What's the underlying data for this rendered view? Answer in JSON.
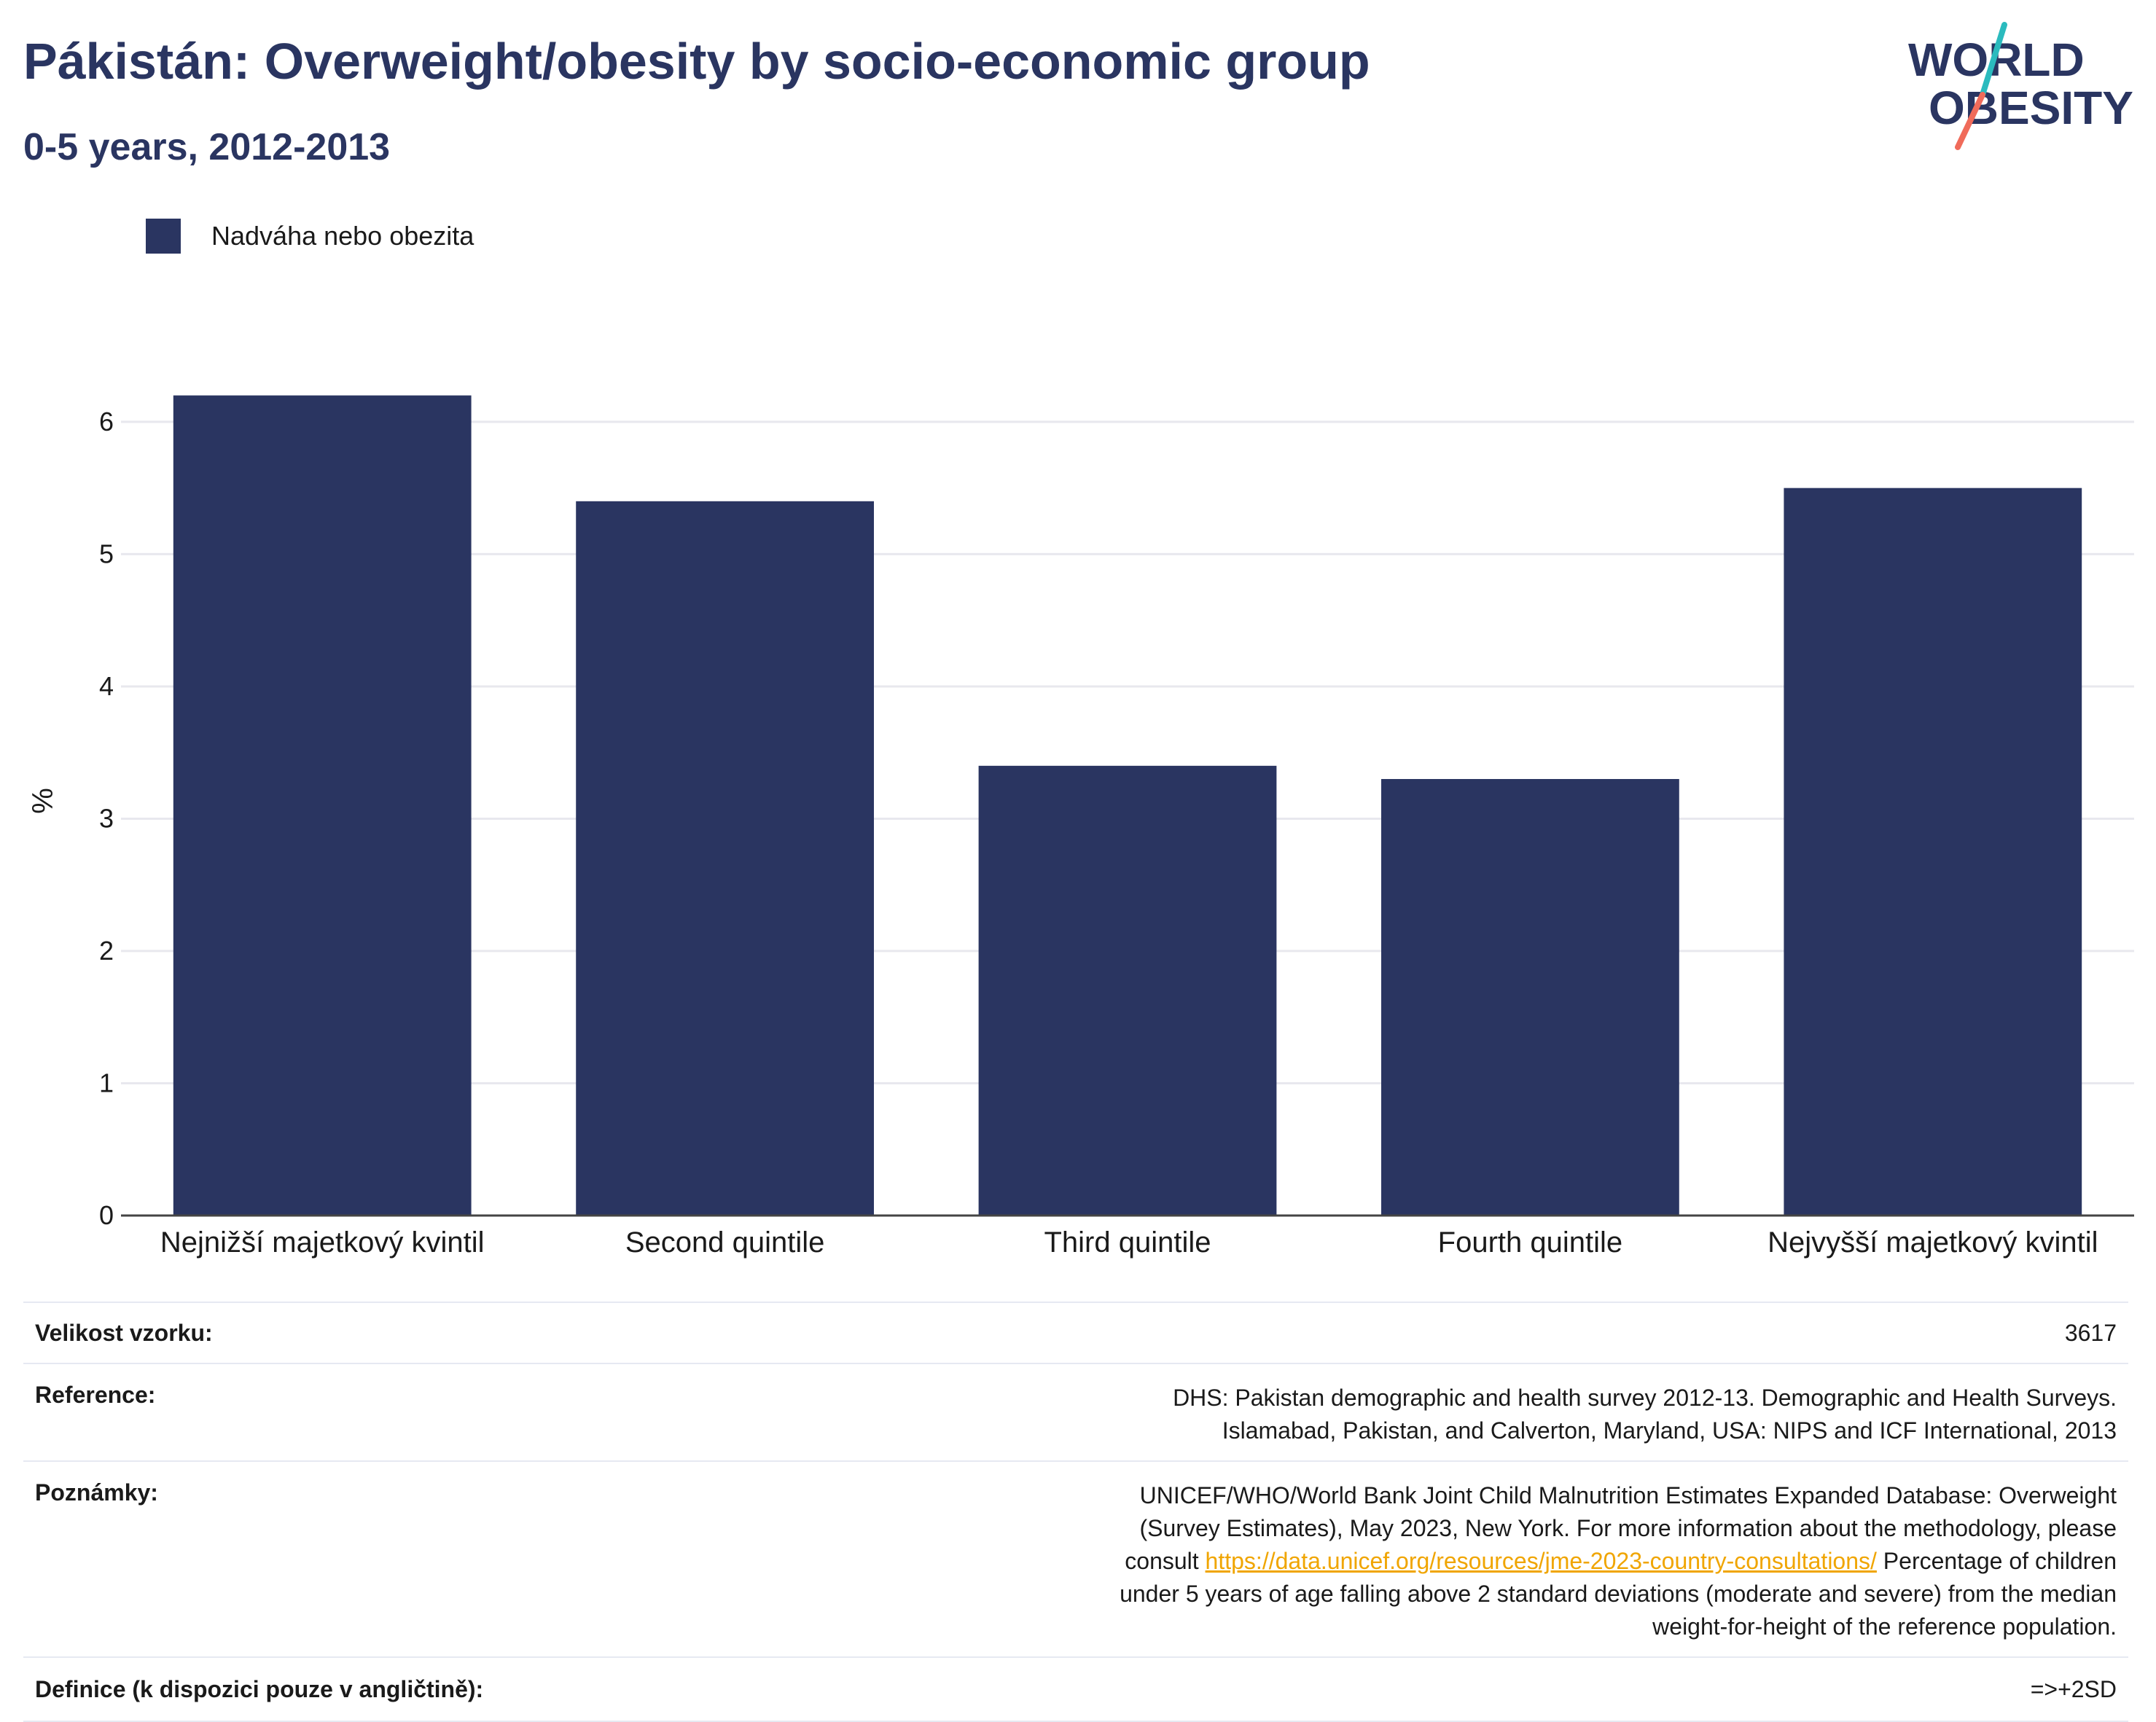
{
  "title": "Pákistán: Overweight/obesity by socio-economic group",
  "subtitle": "0-5 years, 2012-2013",
  "logo": {
    "line1": "WORLD",
    "line2": "OBESITY"
  },
  "colors": {
    "bar": "#2a3561",
    "title": "#2a3561",
    "logo_text": "#2a3561",
    "logo_slash_top": "#2bbbbe",
    "logo_slash_bottom": "#f06b5a",
    "gridline": "#e8e8ee",
    "link": "#f0a500"
  },
  "legend": {
    "label": "Nadváha nebo obezita"
  },
  "chart_data": {
    "type": "bar",
    "categories": [
      "Nejnižší majetkový kvintil",
      "Second quintile",
      "Third quintile",
      "Fourth quintile",
      "Nejvyšší majetkový kvintil"
    ],
    "series": [
      {
        "name": "Nadváha nebo obezita",
        "values": [
          6.2,
          5.4,
          3.4,
          3.3,
          5.5
        ]
      }
    ],
    "ylabel": "%",
    "xlabel": "",
    "ylim": [
      0,
      6.6
    ],
    "yticks": [
      0,
      1,
      2,
      3,
      4,
      5,
      6
    ],
    "grid": true,
    "legend_position": "top-left"
  },
  "info": {
    "sample_label": "Velikost vzorku:",
    "sample_value": "3617",
    "reference_label": "Reference:",
    "reference_value": "DHS: Pakistan demographic and health survey 2012-13. Demographic and Health Surveys. Islamabad, Pakistan, and Calverton, Maryland, USA: NIPS and ICF International, 2013",
    "notes_label": "Poznámky:",
    "notes_text_1": "UNICEF/WHO/World Bank Joint Child Malnutrition Estimates Expanded Database: Overweight (Survey Estimates), May 2023, New York. For more information about the methodology, please consult",
    "notes_link": "https://data.unicef.org/resources/jme-2023-country-consultations/",
    "notes_text_2": "Percentage of children under 5 years of age falling above 2 standard deviations (moderate and severe) from the median weight-for-height of the reference population.",
    "definition_label": "Definice (k dispozici pouze v angličtině):",
    "definition_value": "=>+2SD"
  }
}
